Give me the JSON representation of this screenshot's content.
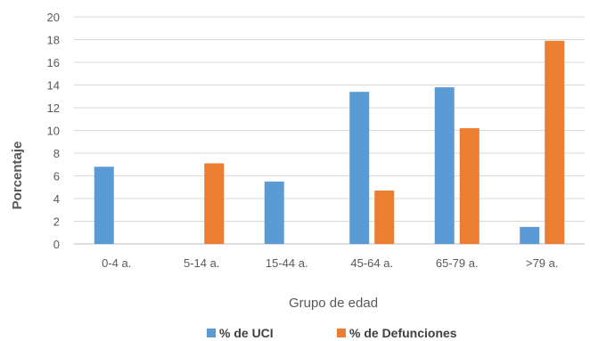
{
  "chart_data": {
    "type": "bar",
    "categories": [
      "0-4 a.",
      "5-14 a.",
      "15-44 a.",
      "45-64 a.",
      "65-79 a.",
      ">79 a."
    ],
    "series": [
      {
        "name": "% de UCI",
        "color": "#5B9BD5",
        "values": [
          6.8,
          0,
          5.5,
          13.4,
          13.8,
          1.5
        ]
      },
      {
        "name": "% de Defunciones",
        "color": "#ED7D31",
        "values": [
          0,
          7.1,
          0,
          4.7,
          10.2,
          17.9
        ]
      }
    ],
    "yticks": [
      0,
      2,
      4,
      6,
      8,
      10,
      12,
      14,
      16,
      18,
      20
    ],
    "ylim": [
      0,
      20
    ],
    "xlabel": "Grupo de edad",
    "ylabel": "Porcentaje",
    "grid": true,
    "legend_position": "bottom"
  }
}
